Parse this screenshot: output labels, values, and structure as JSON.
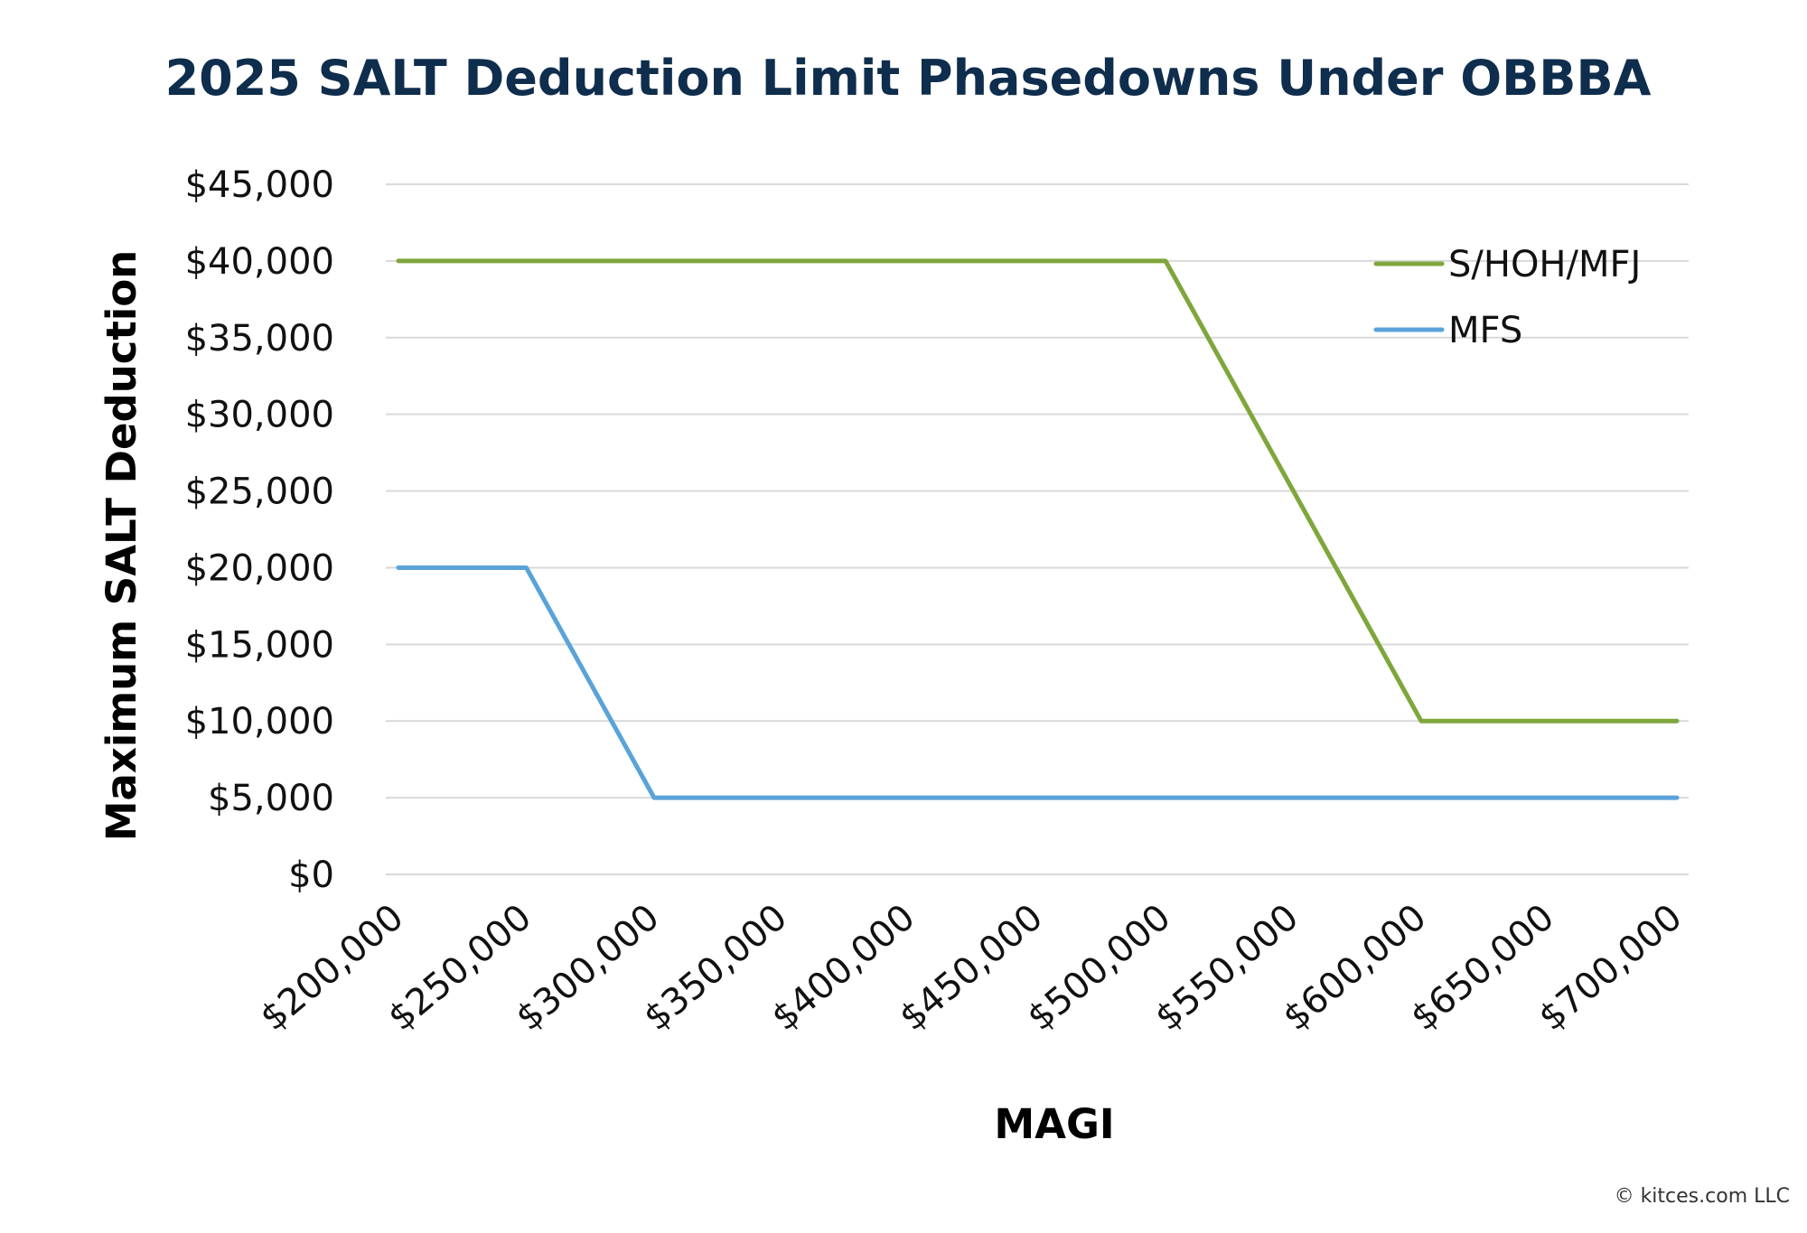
{
  "chart_data": {
    "type": "line",
    "title": "2025 SALT Deduction Limit Phasedowns Under OBBBA",
    "xlabel": "MAGI",
    "ylabel": "Maximum SALT Deduction",
    "x_ticks": [
      "$200,000",
      "$250,000",
      "$300,000",
      "$350,000",
      "$400,000",
      "$450,000",
      "$500,000",
      "$550,000",
      "$600,000",
      "$650,000",
      "$700,000"
    ],
    "y_ticks": [
      "$0",
      "$5,000",
      "$10,000",
      "$15,000",
      "$20,000",
      "$25,000",
      "$30,000",
      "$35,000",
      "$40,000",
      "$45,000"
    ],
    "xlim": [
      200000,
      700000
    ],
    "ylim": [
      0,
      45000
    ],
    "grid": "horizontal",
    "legend_position": "top-right",
    "series": [
      {
        "name": "S/HOH/MFJ",
        "color": "#7ea63c",
        "points": [
          [
            200000,
            40000
          ],
          [
            500000,
            40000
          ],
          [
            600000,
            10000
          ],
          [
            700000,
            10000
          ]
        ]
      },
      {
        "name": "MFS",
        "color": "#5aa3d8",
        "points": [
          [
            200000,
            20000
          ],
          [
            250000,
            20000
          ],
          [
            300000,
            5000
          ],
          [
            700000,
            5000
          ]
        ]
      }
    ]
  },
  "colors": {
    "title": "#0f2d4d",
    "grid": "#d9d9d9"
  },
  "footer": {
    "copyright": "© kitces.com LLC"
  }
}
